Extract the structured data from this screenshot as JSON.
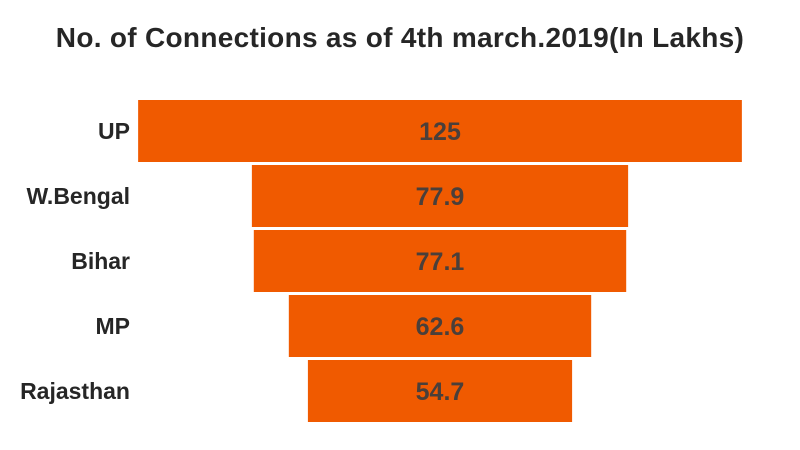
{
  "chart_data": {
    "type": "bar",
    "subtype": "funnel",
    "title": "No. of Connections as of 4th march.2019(In Lakhs)",
    "categories": [
      "UP",
      "W.Bengal",
      "Bihar",
      "MP",
      "Rajasthan"
    ],
    "values": [
      125,
      77.9,
      77.1,
      62.6,
      54.7
    ],
    "value_labels": [
      "125",
      "77.9",
      "77.1",
      "62.6",
      "54.7"
    ],
    "xlabel": "",
    "ylabel": "",
    "grid": false,
    "legend": "none",
    "colors": {
      "bar": "#F05A00",
      "label": "#4a3f3a",
      "category": "#262626"
    }
  }
}
